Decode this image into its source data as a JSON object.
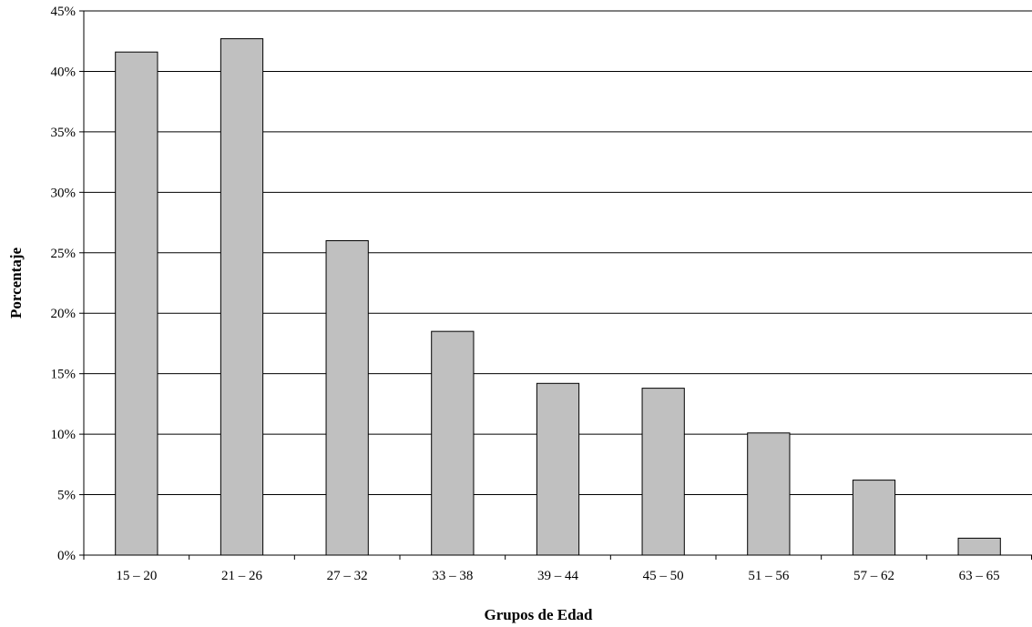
{
  "chart_data": {
    "type": "bar",
    "title": "",
    "xlabel": "Grupos de Edad",
    "ylabel": "Porcentaje",
    "categories": [
      "15 – 20",
      "21 – 26",
      "27 – 32",
      "33 – 38",
      "39 – 44",
      "45 – 50",
      "51 – 56",
      "57 – 62",
      "63 – 65"
    ],
    "values": [
      41.6,
      42.7,
      26.0,
      18.5,
      14.2,
      13.8,
      10.1,
      6.2,
      1.4
    ],
    "ylim": [
      0,
      45
    ],
    "yticks": [
      0,
      5,
      10,
      15,
      20,
      25,
      30,
      35,
      40,
      45
    ],
    "ytick_labels": [
      "0%",
      "5%",
      "10%",
      "15%",
      "20%",
      "25%",
      "30%",
      "35%",
      "40%",
      "45%"
    ],
    "grid": true,
    "legend": "none",
    "colors": {
      "bar_fill": "#c0c0c0",
      "bar_stroke": "#000000",
      "grid": "#000000",
      "background": "#ffffff"
    }
  }
}
